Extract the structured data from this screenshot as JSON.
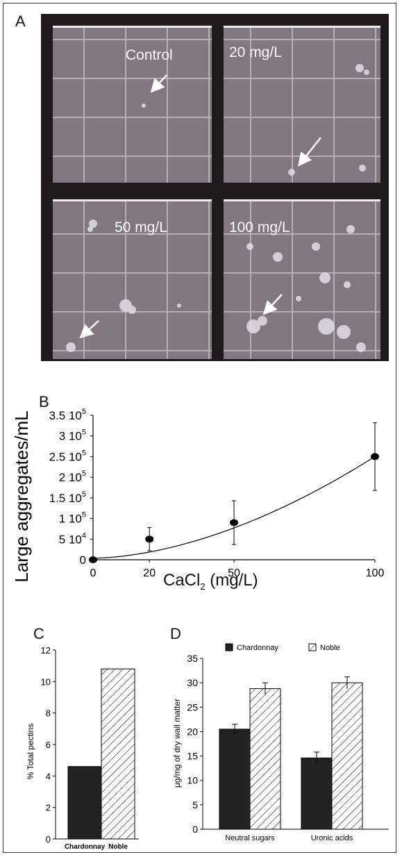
{
  "panel_a": {
    "letter": "A",
    "quadrants": [
      {
        "label": "Control"
      },
      {
        "label": "20 mg/L"
      },
      {
        "label": "50 mg/L"
      },
      {
        "label": "100 mg/L"
      }
    ]
  },
  "panel_b": {
    "letter": "B",
    "ylabel": "Large aggregates/mL",
    "xlabel_main": "CaCl",
    "xlabel_sub": "2",
    "xlabel_tail": " (mg/L)",
    "chart_data": {
      "type": "scatter",
      "x": [
        0,
        20,
        50,
        100
      ],
      "y": [
        0,
        50000,
        90000,
        250000
      ],
      "error": [
        0,
        28000,
        53000,
        82000
      ],
      "fit": "curve",
      "xlim": [
        0,
        100
      ],
      "ylim": [
        0,
        350000
      ],
      "x_ticks": [
        "0",
        "20",
        "50",
        "100"
      ],
      "y_ticks": [
        {
          "base": "0",
          "exp": ""
        },
        {
          "base": "5 10",
          "exp": "4"
        },
        {
          "base": "1 10",
          "exp": "5"
        },
        {
          "base": "1.5 10",
          "exp": "5"
        },
        {
          "base": "2 10",
          "exp": "5"
        },
        {
          "base": "2.5 10",
          "exp": "5"
        },
        {
          "base": "3 10",
          "exp": "5"
        },
        {
          "base": "3.5 10",
          "exp": "5"
        }
      ],
      "grid": false
    }
  },
  "panel_c": {
    "letter": "C",
    "ylabel": "% Total pectins",
    "chart_data": {
      "type": "bar",
      "categories": [
        "Chardonnay",
        "Noble"
      ],
      "values": [
        4.6,
        10.8
      ],
      "ylim": [
        0,
        12
      ],
      "y_ticks": [
        "0",
        "2",
        "4",
        "6",
        "8",
        "10",
        "12"
      ],
      "colors": {
        "Chardonnay": "#222222",
        "Noble": "hatched"
      }
    }
  },
  "panel_d": {
    "letter": "D",
    "ylabel": "μg/mg of dry wall matter",
    "chart_data": {
      "type": "bar",
      "categories": [
        "Neutral sugars",
        "Uronic acids"
      ],
      "series": [
        {
          "name": "Chardonnay",
          "values": [
            20.5,
            14.6
          ],
          "errors": [
            1.0,
            1.2
          ]
        },
        {
          "name": "Noble",
          "values": [
            28.8,
            30.0
          ],
          "errors": [
            1.2,
            1.2
          ]
        }
      ],
      "ylim": [
        0,
        35
      ],
      "y_ticks": [
        "0",
        "5",
        "10",
        "15",
        "20",
        "25",
        "30",
        "35"
      ],
      "legend": "top"
    }
  }
}
